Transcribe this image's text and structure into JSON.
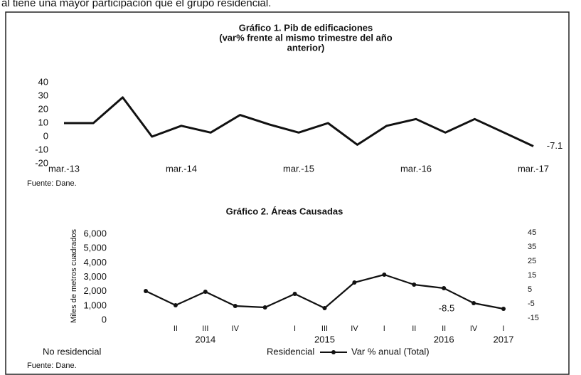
{
  "intro_text": "al tiene una mayor participación que el grupo residencial.",
  "chart_data": [
    {
      "type": "line",
      "title": [
        "Gráfico 1. Pib de edificaciones",
        "(var% frente al mismo trimestre del año",
        "anterior)"
      ],
      "categories": [
        "mar.-13",
        null,
        null,
        null,
        "mar.-14",
        null,
        null,
        null,
        "mar.-15",
        null,
        null,
        null,
        "mar.-16",
        null,
        null,
        null,
        "mar.-17"
      ],
      "series": [
        {
          "name": "Pib de edificaciones",
          "color": "#111111",
          "values": [
            10,
            10,
            29,
            0,
            8,
            3,
            16,
            9,
            3,
            10,
            -6,
            8,
            13,
            3,
            13,
            3,
            -7.1
          ],
          "value_labels": [
            null,
            null,
            null,
            null,
            null,
            null,
            null,
            null,
            null,
            null,
            null,
            null,
            null,
            null,
            null,
            null,
            "-7.1"
          ]
        }
      ],
      "ylim": [
        -20,
        40
      ],
      "yticks": [
        -20,
        -10,
        0,
        10,
        20,
        30,
        40
      ],
      "source": "Fuente: Dane."
    },
    {
      "type": "line",
      "title": [
        "Gráfico 2. Áreas Causadas"
      ],
      "ylabel": "Miles de metros cuadrados",
      "categories": [
        null,
        "II",
        "III",
        "IV",
        null,
        "I",
        "III",
        "IV",
        "I",
        "II",
        "II",
        "IV",
        "I"
      ],
      "years": [
        "2014",
        "2015",
        "2016",
        "2017"
      ],
      "legend_labels": [
        "No residencial",
        "Residencial"
      ],
      "series": [
        {
          "name": "Var % anual (Total)",
          "color": "#111111",
          "axis": "y2",
          "values": [
            4,
            -6,
            3.5,
            -6.5,
            -7.5,
            2,
            -8,
            10,
            15.5,
            8.5,
            6,
            -4.5,
            -8.5
          ],
          "value_labels": [
            null,
            null,
            null,
            null,
            null,
            null,
            null,
            null,
            null,
            null,
            null,
            null,
            "-8.5"
          ]
        }
      ],
      "ylim": [
        0,
        6000
      ],
      "yticks": [
        {
          "value": 0,
          "label": "0"
        },
        {
          "value": 1000,
          "label": "1,000"
        },
        {
          "value": 2000,
          "label": "2,000"
        },
        {
          "value": 3000,
          "label": "3,000"
        },
        {
          "value": 4000,
          "label": "4,000"
        },
        {
          "value": 5000,
          "label": "5,000"
        },
        {
          "value": 6000,
          "label": "6,000"
        }
      ],
      "y2lim": [
        -15,
        45
      ],
      "y2ticks": [
        -15,
        -5,
        5,
        15,
        25,
        35,
        45
      ],
      "source": "Fuente: Dane."
    }
  ]
}
